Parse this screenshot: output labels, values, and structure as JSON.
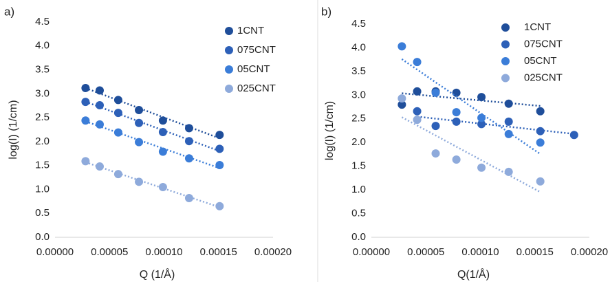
{
  "chart_data": [
    {
      "type": "scatter",
      "panel_label": "a)",
      "xlabel": "Q (1/Å)",
      "ylabel": "log(I) (1/cm)",
      "xlim": [
        0,
        0.0002
      ],
      "ylim": [
        0,
        4.5
      ],
      "xticks": [
        {
          "value": 0,
          "label": "0.00000"
        },
        {
          "value": 5e-05,
          "label": "0.00005"
        },
        {
          "value": 0.0001,
          "label": "0.00010"
        },
        {
          "value": 0.00015,
          "label": "0.00015"
        },
        {
          "value": 0.0002,
          "label": "0.00020"
        }
      ],
      "yticks": [
        {
          "value": 0,
          "label": "0.0"
        },
        0.5,
        {
          "value": 1,
          "label": "1.0"
        },
        1.5,
        {
          "value": 2,
          "label": "2.0"
        },
        2.5,
        {
          "value": 3,
          "label": "3.0"
        },
        3.5,
        {
          "value": 4,
          "label": "4.0"
        },
        4.5
      ],
      "trendline": true,
      "legend": "top-right",
      "series": [
        {
          "name": "1CNT",
          "color": "#1f4e9a",
          "x": [
            2.8e-05,
            4.1e-05,
            5.8e-05,
            7.7e-05,
            9.9e-05,
            0.000123,
            0.000151
          ],
          "values": [
            3.12,
            3.07,
            2.87,
            2.66,
            2.44,
            2.28,
            2.14
          ]
        },
        {
          "name": "075CNT",
          "color": "#2d60b8",
          "x": [
            2.8e-05,
            4.1e-05,
            5.8e-05,
            7.7e-05,
            9.9e-05,
            0.000123,
            0.000151
          ],
          "values": [
            2.83,
            2.76,
            2.6,
            2.39,
            2.2,
            2.01,
            1.85
          ]
        },
        {
          "name": "05CNT",
          "color": "#3b7dd8",
          "x": [
            2.8e-05,
            4.1e-05,
            5.8e-05,
            7.7e-05,
            9.9e-05,
            0.000123,
            0.000151
          ],
          "values": [
            2.44,
            2.36,
            2.19,
            1.99,
            1.79,
            1.65,
            1.51
          ]
        },
        {
          "name": "025CNT",
          "color": "#8eaadb",
          "x": [
            2.8e-05,
            4.1e-05,
            5.8e-05,
            7.7e-05,
            9.9e-05,
            0.000123,
            0.000151
          ],
          "values": [
            1.59,
            1.48,
            1.32,
            1.16,
            1.05,
            0.82,
            0.65
          ]
        }
      ]
    },
    {
      "type": "scatter",
      "panel_label": "b)",
      "xlabel": "Q(1/Å)",
      "ylabel": "log(I) (1/cm)",
      "xlim": [
        0,
        0.0002
      ],
      "ylim": [
        0,
        4.5
      ],
      "xticks": [
        {
          "value": 0,
          "label": "0.00000"
        },
        {
          "value": 5e-05,
          "label": "0.00005"
        },
        {
          "value": 0.0001,
          "label": "0.00010"
        },
        {
          "value": 0.00015,
          "label": "0.00015"
        },
        {
          "value": 0.0002,
          "label": "0.00020"
        }
      ],
      "yticks": [
        {
          "value": 0,
          "label": "0.0"
        },
        0.5,
        {
          "value": 1,
          "label": "1.0"
        },
        1.5,
        {
          "value": 2,
          "label": "2.0"
        },
        2.5,
        {
          "value": 3,
          "label": "3.0"
        },
        3.5,
        {
          "value": 4,
          "label": "4.0"
        },
        4.5
      ],
      "trendline": true,
      "legend": "top-right",
      "series": [
        {
          "name": "1CNT",
          "color": "#1f4e9a",
          "x": [
            2.8e-05,
            4.2e-05,
            5.9e-05,
            7.8e-05,
            0.000101,
            0.000126,
            0.000155
          ],
          "values": [
            2.8,
            3.08,
            3.08,
            3.05,
            2.96,
            2.82,
            2.66
          ]
        },
        {
          "name": "075CNT",
          "color": "#2d60b8",
          "x": [
            4.2e-05,
            5.9e-05,
            7.8e-05,
            0.000101,
            0.000126,
            0.000155,
            0.000186
          ],
          "values": [
            2.66,
            2.35,
            2.44,
            2.39,
            2.44,
            2.24,
            2.16
          ]
        },
        {
          "name": "05CNT",
          "color": "#3b7dd8",
          "x": [
            2.8e-05,
            4.2e-05,
            5.9e-05,
            7.8e-05,
            0.000101,
            0.000126,
            0.000155
          ],
          "values": [
            4.03,
            3.7,
            3.05,
            2.64,
            2.52,
            2.18,
            2.0
          ]
        },
        {
          "name": "025CNT",
          "color": "#8eaadb",
          "x": [
            2.8e-05,
            4.2e-05,
            5.9e-05,
            7.8e-05,
            0.000101,
            0.000126,
            0.000155
          ],
          "values": [
            2.93,
            2.48,
            1.77,
            1.64,
            1.47,
            1.38,
            1.18
          ]
        }
      ]
    }
  ]
}
